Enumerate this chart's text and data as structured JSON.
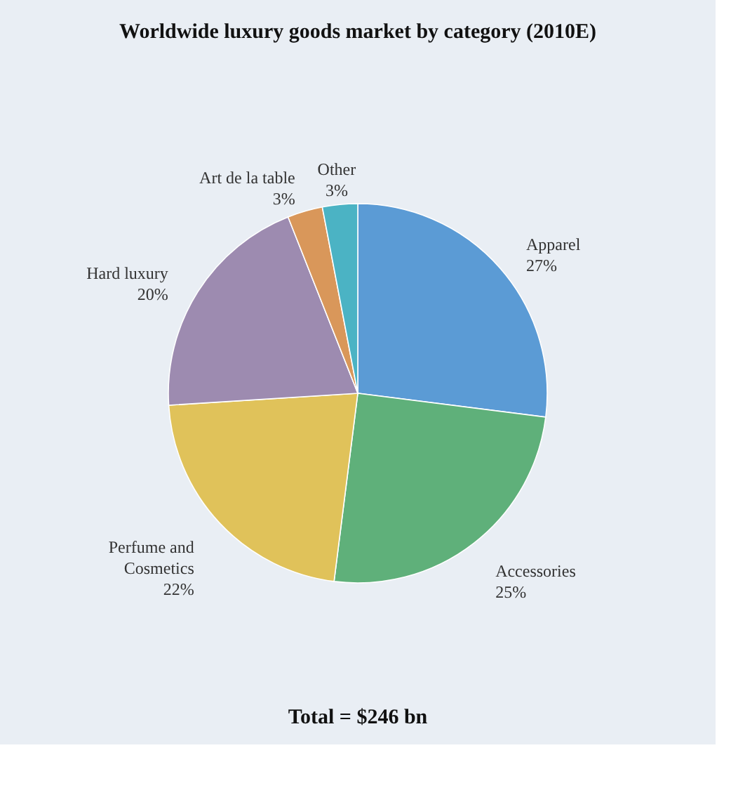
{
  "chart_data": {
    "type": "pie",
    "title": "Worldwide luxury goods market by category (2010E)",
    "categories": [
      "Apparel",
      "Accessories",
      "Perfume and Cosmetics",
      "Hard luxury",
      "Art de la table",
      "Other"
    ],
    "values": [
      27,
      25,
      22,
      20,
      3,
      3
    ],
    "value_labels": [
      "27%",
      "25%",
      "22%",
      "20%",
      "3%",
      "3%"
    ],
    "colors": [
      "#5b9bd5",
      "#5fb07a",
      "#e0c25a",
      "#9d8bb0",
      "#d9975a",
      "#4bb3c4"
    ],
    "annotations": [
      "Total = $246 bn"
    ],
    "legend": false
  }
}
